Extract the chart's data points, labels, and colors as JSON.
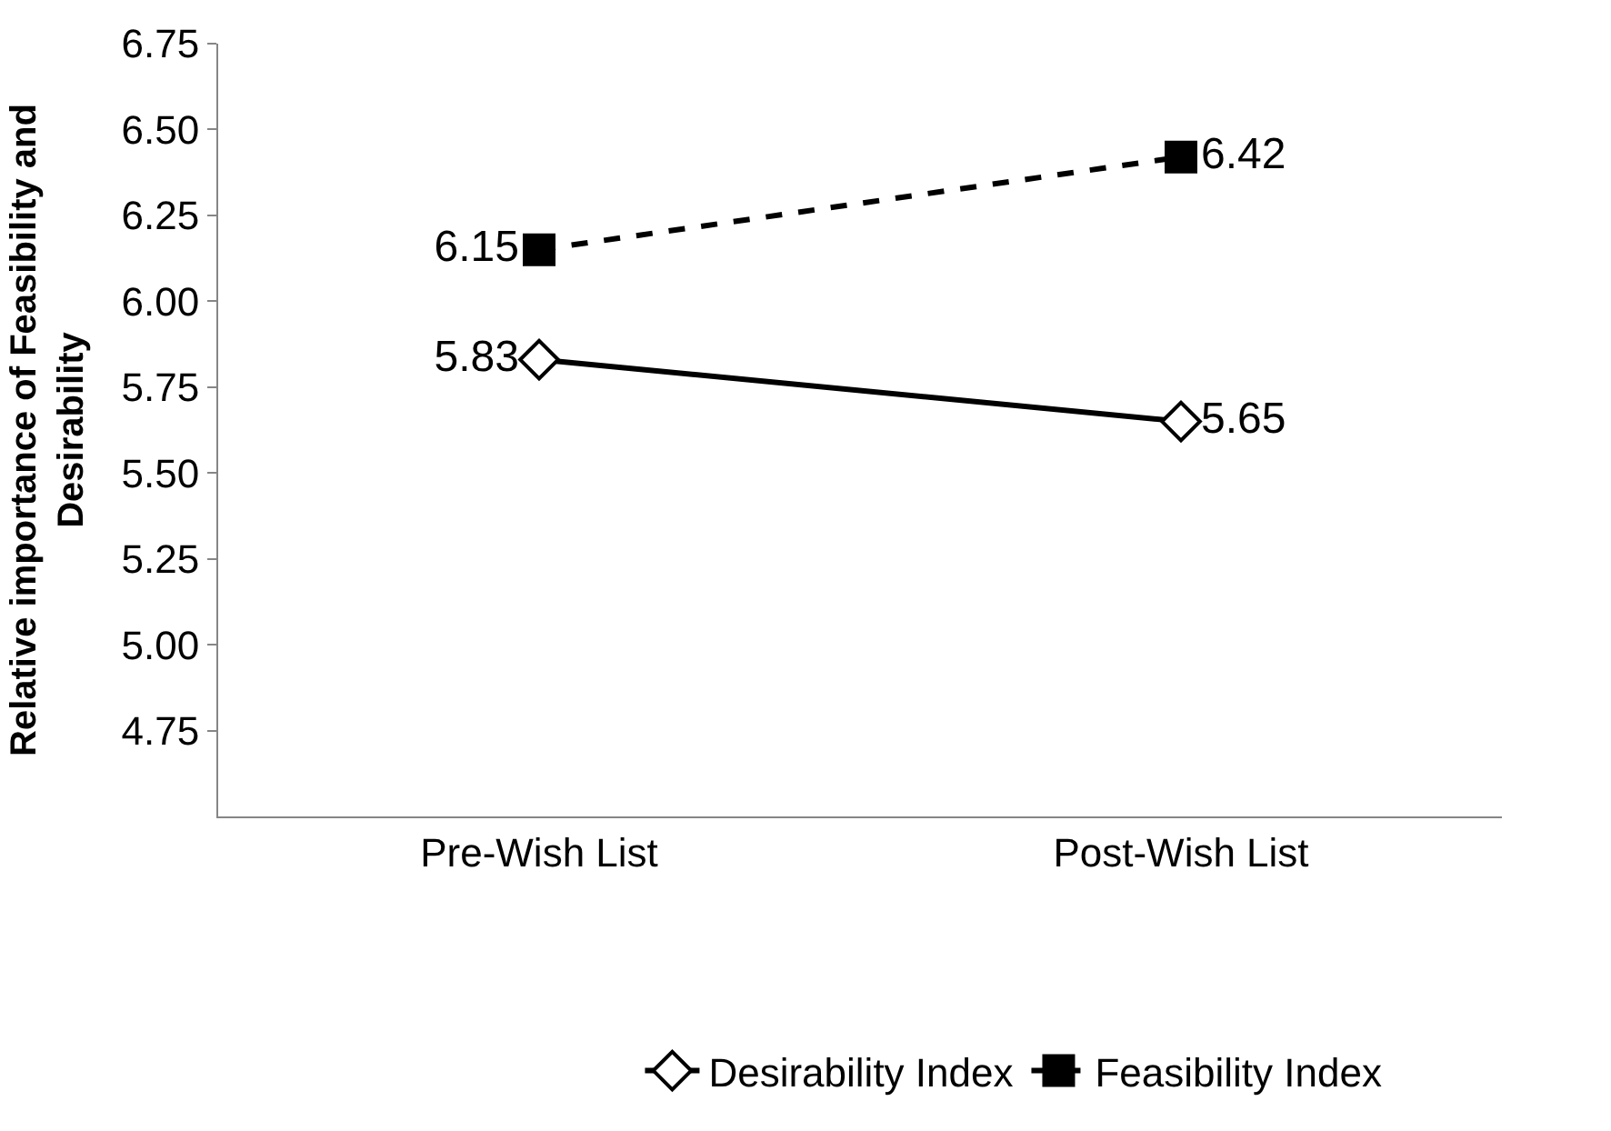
{
  "chart_data": {
    "type": "line",
    "ylabel": "Relative importance of Feasibility and Desirability",
    "categories": [
      "Pre-Wish List",
      "Post-Wish List"
    ],
    "series": [
      {
        "name": "Desirability Index",
        "color": "#000000",
        "values": [
          5.83,
          5.65
        ],
        "marker": "diamond",
        "line_style": "solid"
      },
      {
        "name": "Feasibility Index",
        "color": "#000000",
        "values": [
          6.15,
          6.42
        ],
        "marker": "square",
        "line_style": "dashed"
      }
    ],
    "ylim": [
      4.5,
      6.75
    ],
    "yticks": [
      4.75,
      {
        "value": 5,
        "label": "5.00"
      },
      5.25,
      {
        "value": 5.5,
        "label": "5.50"
      },
      5.75,
      {
        "value": 6,
        "label": "6.00"
      },
      6.25,
      {
        "value": 6.5,
        "label": "6.50"
      },
      6.75
    ],
    "data_labels": true,
    "legend": "bottom"
  }
}
